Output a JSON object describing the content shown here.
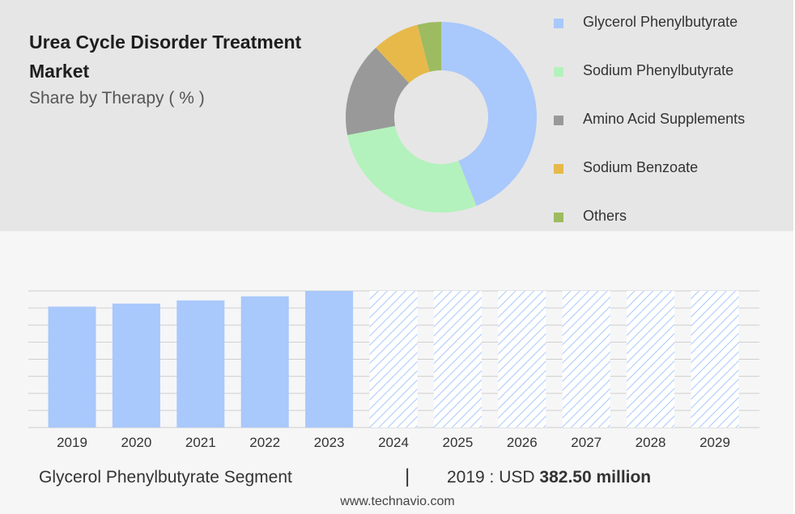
{
  "title": "Urea Cycle Disorder Treatment Market",
  "subtitle": "Share by Therapy ( % )",
  "colors": {
    "historical_bar": "#a9c8fb",
    "forecast_hatch": "#a9c8fb",
    "gridline": "#cfcfcf"
  },
  "chart_data": [
    {
      "type": "pie",
      "donut": true,
      "slices": [
        {
          "label": "Glycerol Phenylbutyrate",
          "value": 44,
          "color": "#a9c8fb"
        },
        {
          "label": "Sodium Phenylbutyrate",
          "value": 28,
          "color": "#b3f2bc"
        },
        {
          "label": "Amino Acid Supplements",
          "value": 16,
          "color": "#999999"
        },
        {
          "label": "Sodium Benzoate",
          "value": 8,
          "color": "#e6b94a"
        },
        {
          "label": "Others",
          "value": 4,
          "color": "#9dbb60"
        }
      ],
      "legend_placement": "right"
    },
    {
      "type": "bar",
      "categories": [
        "2019",
        "2020",
        "2021",
        "2022",
        "2023",
        "2024",
        "2025",
        "2026",
        "2027",
        "2028",
        "2029"
      ],
      "values": [
        382.5,
        392,
        402,
        415,
        432,
        null,
        null,
        null,
        null,
        null,
        null
      ],
      "forecast_categories": [
        "2024",
        "2025",
        "2026",
        "2027",
        "2028",
        "2029"
      ],
      "ylim": [
        0,
        432
      ],
      "grid": true
    }
  ],
  "footer": {
    "segment_label": "Glycerol Phenylbutyrate Segment",
    "divider": "|",
    "year_text": "2019 : USD",
    "value_text": "382.50 million"
  },
  "credit": "www.technavio.com"
}
